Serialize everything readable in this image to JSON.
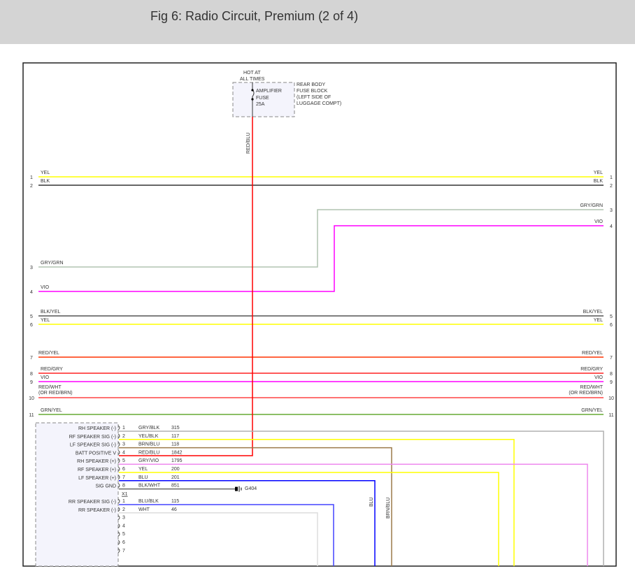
{
  "title": "Fig 6: Radio Circuit, Premium (2 of 4)",
  "fuse": {
    "hot": "HOT AT",
    "hot2": "ALL TIMES",
    "name": "AMPLIFIER",
    "name2": "FUSE",
    "rating": "25A",
    "block": [
      "REAR BODY",
      "FUSE BLOCK",
      "(LEFT SIDE OF",
      "LUGGAGE COMPT)"
    ],
    "wire": "RED/BLU",
    "wire_color": "#ff0000"
  },
  "through_wires": [
    {
      "pin": "1",
      "label": "YEL",
      "color": "#ffff00"
    },
    {
      "pin": "2",
      "label": "BLK",
      "color": "#333333"
    },
    {
      "pin": "3",
      "label": "GRY/GRN",
      "color": "#b0c4b0"
    },
    {
      "pin": "4",
      "label": "VIO",
      "color": "#ff00ff"
    },
    {
      "pin": "5",
      "label": "BLK/YEL",
      "color": "#555555"
    },
    {
      "pin": "6",
      "label": "YEL",
      "color": "#ffff00"
    },
    {
      "pin": "7",
      "label": "RED/YEL",
      "color": "#ff3300"
    },
    {
      "pin": "8",
      "label": "RED/GRY",
      "color": "#ff2222"
    },
    {
      "pin": "9",
      "label": "VIO",
      "color": "#ff00ff"
    },
    {
      "pin": "10",
      "label": "RED/WHT",
      "label2": "(OR RED/BRN)",
      "color": "#ff4444"
    },
    {
      "pin": "11",
      "label": "GRN/YEL",
      "color": "#66aa33"
    }
  ],
  "connector": {
    "name": "X1",
    "pins": [
      {
        "pin": "1",
        "func": "RH SPEAKER (-)",
        "wire": "GRY/BLK",
        "circuit": "315",
        "color": "#b0b0b0"
      },
      {
        "pin": "2",
        "func": "RF SPEAKER SIG (-)",
        "wire": "YEL/BLK",
        "circuit": "117",
        "color": "#ffff00"
      },
      {
        "pin": "3",
        "func": "LF SPEAKER SIG (-)",
        "wire": "BRN/BLU",
        "circuit": "118",
        "color": "#9b7a4a"
      },
      {
        "pin": "4",
        "func": "BATT POSITIVE V",
        "wire": "RED/BLU",
        "circuit": "1842",
        "color": "#ff0000"
      },
      {
        "pin": "5",
        "func": "RH SPEAKER (+)",
        "wire": "GRY/VIO",
        "circuit": "1795",
        "color": "#ee88ee"
      },
      {
        "pin": "6",
        "func": "RF SPEAKER (+)",
        "wire": "YEL",
        "circuit": "200",
        "color": "#ffff00"
      },
      {
        "pin": "7",
        "func": "LF SPEAKER (+)",
        "wire": "BLU",
        "circuit": "201",
        "color": "#0000ff"
      },
      {
        "pin": "8",
        "func": "SIG GND",
        "wire": "BLK/WHT",
        "circuit": "851",
        "color": "#666666"
      }
    ],
    "pins2": [
      {
        "pin": "1",
        "func": "RR SPEAKER SIG (-)",
        "wire": "BLU/BLK",
        "circuit": "115",
        "color": "#4444ff"
      },
      {
        "pin": "2",
        "func": "RR SPEAKER (-)",
        "wire": "WHT",
        "circuit": "46",
        "color": "#dddddd"
      },
      {
        "pin": "3"
      },
      {
        "pin": "4"
      },
      {
        "pin": "5"
      },
      {
        "pin": "6"
      },
      {
        "pin": "7"
      }
    ]
  },
  "ground": "G404",
  "vertical_labels": {
    "blu": "BLU",
    "brn_blu": "BRN/BLU"
  }
}
